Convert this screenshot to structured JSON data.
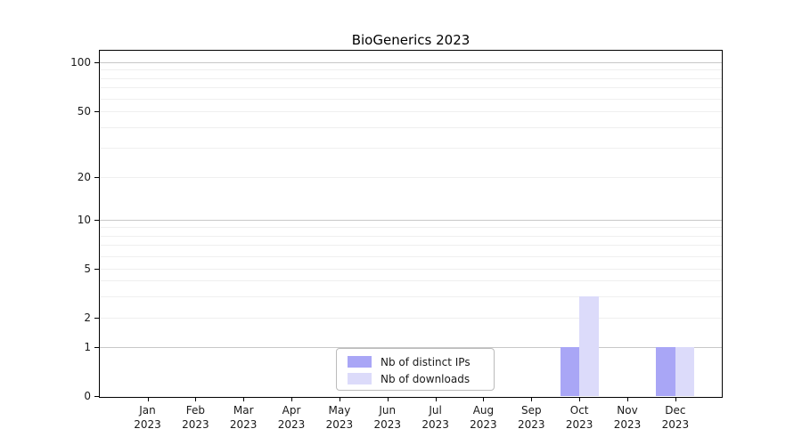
{
  "title": "BioGenerics 2023",
  "chart_data": {
    "type": "bar",
    "title": "BioGenerics 2023",
    "categories": [
      "Jan",
      "Feb",
      "Mar",
      "Apr",
      "May",
      "Jun",
      "Jul",
      "Aug",
      "Sep",
      "Oct",
      "Nov",
      "Dec"
    ],
    "category_year": "2023",
    "series": [
      {
        "name": "Nb of distinct IPs",
        "color": "#a9a6f6",
        "values": [
          0,
          0,
          0,
          0,
          0,
          0,
          0,
          0,
          0,
          1,
          0,
          1
        ]
      },
      {
        "name": "Nb of downloads",
        "color": "#dcdbfa",
        "values": [
          0,
          0,
          0,
          0,
          0,
          0,
          0,
          0,
          0,
          3,
          0,
          1
        ]
      }
    ],
    "yscale": "log-like (0, then logarithmic above 1)",
    "yticks": [
      0,
      1,
      2,
      5,
      10,
      20,
      50,
      100
    ],
    "major_gridlines": [
      1,
      10,
      100
    ],
    "minor_gridlines": [
      2,
      3,
      4,
      5,
      6,
      7,
      8,
      9,
      20,
      30,
      40,
      50,
      60,
      70,
      80,
      90
    ],
    "ylim": [
      0,
      117
    ],
    "xlabel": "",
    "ylabel": "",
    "grid": "horizontal",
    "legend_position": "bottom-center",
    "colors": {
      "grid_major": "#c8c8c8",
      "grid_minor": "#efefef",
      "spine": "#000000",
      "text": "#1a1a1a"
    }
  }
}
